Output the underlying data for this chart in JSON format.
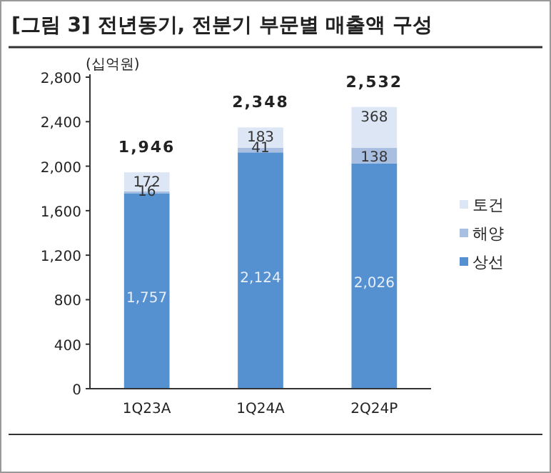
{
  "chart_data": {
    "type": "bar",
    "title": "[그림 3] 전년동기, 전분기 부문별 매출액 구성",
    "ylabel": "(십억원)",
    "categories": [
      "1Q23A",
      "1Q24A",
      "2Q24P"
    ],
    "stacked": true,
    "series": [
      {
        "name": "상선",
        "color": "#5591d0",
        "values": [
          1757,
          2124,
          2026
        ],
        "value_labels": [
          "1,757",
          "2,124",
          "2,026"
        ]
      },
      {
        "name": "해양",
        "color": "#a8bfe2",
        "values": [
          16,
          41,
          138
        ],
        "value_labels": [
          "16",
          "41",
          "138"
        ]
      },
      {
        "name": "토건",
        "color": "#dde6f5",
        "values": [
          172,
          183,
          368
        ],
        "value_labels": [
          "172",
          "183",
          "368"
        ]
      }
    ],
    "totals": [
      "1,946",
      "2,348",
      "2,532"
    ],
    "ylim": [
      0,
      2800
    ],
    "yticks": [
      0,
      400,
      800,
      {
        "value": 1200,
        "label": "1,200"
      },
      {
        "value": 1600,
        "label": "1,600"
      },
      {
        "value": 2000,
        "label": "2,000"
      },
      {
        "value": 2400,
        "label": "2,400"
      },
      {
        "value": 2800,
        "label": "2,800"
      }
    ],
    "grid": false,
    "legend": "right"
  }
}
